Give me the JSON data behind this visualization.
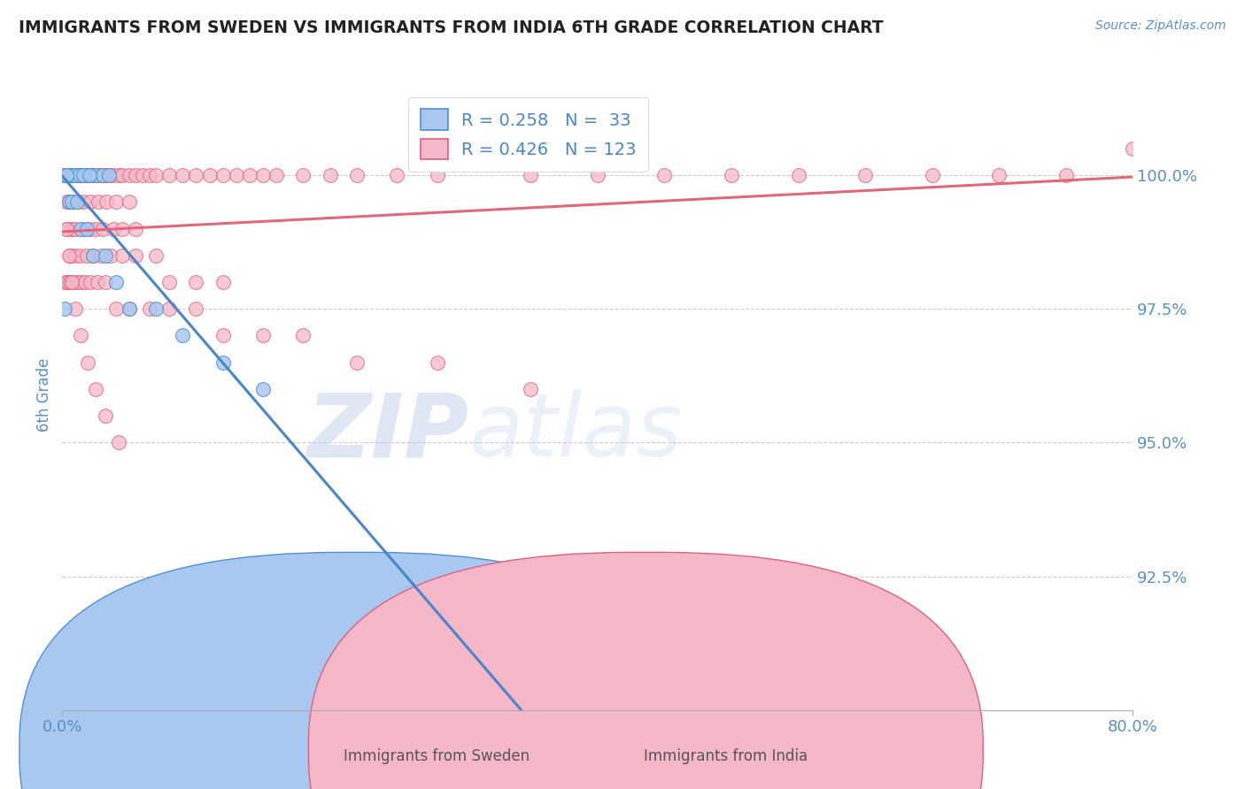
{
  "title": "IMMIGRANTS FROM SWEDEN VS IMMIGRANTS FROM INDIA 6TH GRADE CORRELATION CHART",
  "source": "Source: ZipAtlas.com",
  "ylabel": "6th Grade",
  "y_ticks": [
    92.5,
    95.0,
    97.5,
    100.0
  ],
  "y_tick_labels": [
    "92.5%",
    "95.0%",
    "97.5%",
    "100.0%"
  ],
  "xlim": [
    0.0,
    80.0
  ],
  "ylim": [
    90.0,
    101.8
  ],
  "blue_R": 0.258,
  "blue_N": 33,
  "pink_R": 0.426,
  "pink_N": 123,
  "blue_color": "#A8C8F0",
  "pink_color": "#F5B8C8",
  "blue_edge_color": "#5090D0",
  "pink_edge_color": "#E06080",
  "blue_line_color": "#4A85CC",
  "pink_line_color": "#E06878",
  "legend_label_blue": "Immigrants from Sweden",
  "legend_label_pink": "Immigrants from India",
  "watermark_zip": "ZIP",
  "watermark_atlas": "atlas",
  "title_color": "#222222",
  "axis_label_color": "#5A8FC5",
  "tick_label_color": "#5A8FC5",
  "blue_x": [
    0.3,
    0.5,
    0.7,
    0.9,
    1.2,
    1.5,
    1.8,
    2.1,
    2.5,
    3.0,
    3.5,
    0.4,
    0.6,
    0.8,
    1.0,
    1.3,
    1.6,
    2.0,
    0.3,
    0.5,
    0.7,
    1.1,
    1.4,
    1.8,
    2.3,
    3.2,
    4.0,
    5.0,
    7.0,
    9.0,
    12.0,
    15.0,
    0.2
  ],
  "blue_y": [
    100.0,
    100.0,
    100.0,
    100.0,
    100.0,
    100.0,
    100.0,
    100.0,
    100.0,
    100.0,
    100.0,
    100.0,
    100.0,
    100.0,
    100.0,
    100.0,
    100.0,
    100.0,
    100.0,
    99.5,
    99.5,
    99.5,
    99.0,
    99.0,
    98.5,
    98.5,
    98.0,
    97.5,
    97.5,
    97.0,
    96.5,
    96.0,
    97.5
  ],
  "pink_x": [
    0.1,
    0.2,
    0.3,
    0.4,
    0.5,
    0.6,
    0.7,
    0.8,
    0.9,
    1.0,
    1.1,
    1.2,
    1.3,
    1.4,
    1.5,
    1.6,
    1.7,
    1.8,
    1.9,
    2.0,
    2.2,
    2.4,
    2.6,
    2.8,
    3.0,
    3.2,
    3.5,
    3.8,
    4.2,
    4.5,
    5.0,
    5.5,
    6.0,
    6.5,
    7.0,
    8.0,
    9.0,
    10.0,
    11.0,
    12.0,
    13.0,
    14.0,
    15.0,
    16.0,
    18.0,
    20.0,
    22.0,
    25.0,
    28.0,
    30.0,
    35.0,
    40.0,
    45.0,
    50.0,
    55.0,
    60.0,
    65.0,
    70.0,
    75.0,
    80.0,
    0.3,
    0.5,
    0.8,
    1.2,
    1.6,
    2.1,
    2.7,
    3.3,
    4.0,
    5.0,
    0.4,
    0.7,
    1.0,
    1.5,
    2.0,
    2.5,
    3.0,
    3.8,
    4.5,
    5.5,
    0.6,
    0.9,
    1.3,
    1.8,
    2.3,
    2.9,
    3.6,
    4.5,
    5.5,
    7.0,
    8.0,
    10.0,
    12.0,
    0.2,
    0.4,
    0.6,
    0.8,
    1.1,
    1.4,
    1.7,
    2.1,
    2.6,
    3.2,
    4.0,
    5.0,
    6.5,
    8.0,
    10.0,
    12.0,
    15.0,
    18.0,
    22.0,
    28.0,
    35.0,
    0.3,
    0.5,
    0.7,
    1.0,
    1.4,
    1.9,
    2.5,
    3.2,
    4.2
  ],
  "pink_y": [
    100.0,
    100.0,
    100.0,
    100.0,
    100.0,
    100.0,
    100.0,
    100.0,
    100.0,
    100.0,
    100.0,
    100.0,
    100.0,
    100.0,
    100.0,
    100.0,
    100.0,
    100.0,
    100.0,
    100.0,
    100.0,
    100.0,
    100.0,
    100.0,
    100.0,
    100.0,
    100.0,
    100.0,
    100.0,
    100.0,
    100.0,
    100.0,
    100.0,
    100.0,
    100.0,
    100.0,
    100.0,
    100.0,
    100.0,
    100.0,
    100.0,
    100.0,
    100.0,
    100.0,
    100.0,
    100.0,
    100.0,
    100.0,
    100.0,
    100.5,
    100.0,
    100.0,
    100.0,
    100.0,
    100.0,
    100.0,
    100.0,
    100.0,
    100.0,
    100.5,
    99.5,
    99.5,
    99.5,
    99.5,
    99.5,
    99.5,
    99.5,
    99.5,
    99.5,
    99.5,
    99.0,
    99.0,
    99.0,
    99.0,
    99.0,
    99.0,
    99.0,
    99.0,
    99.0,
    99.0,
    98.5,
    98.5,
    98.5,
    98.5,
    98.5,
    98.5,
    98.5,
    98.5,
    98.5,
    98.5,
    98.0,
    98.0,
    98.0,
    98.0,
    98.0,
    98.0,
    98.0,
    98.0,
    98.0,
    98.0,
    98.0,
    98.0,
    98.0,
    97.5,
    97.5,
    97.5,
    97.5,
    97.5,
    97.0,
    97.0,
    97.0,
    96.5,
    96.5,
    96.0,
    99.0,
    98.5,
    98.0,
    97.5,
    97.0,
    96.5,
    96.0,
    95.5,
    95.0
  ]
}
